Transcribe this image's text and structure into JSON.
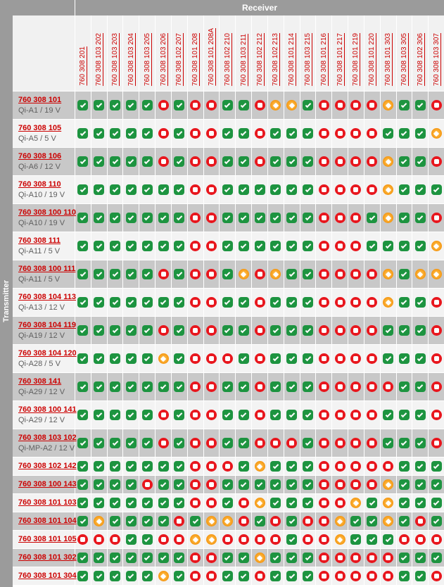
{
  "header": {
    "receiver_label": "Receiver",
    "transmitter_label": "Transmitter"
  },
  "legend": {
    "G": "compatible",
    "R": "not-compatible",
    "O": "restricted"
  },
  "colors": {
    "band_gray": "#9b9b9b",
    "row_dark": "#c8c8c8",
    "row_light": "#f3f3f3",
    "link_red": "#cc0000",
    "icon_green": "#1d9440",
    "icon_red": "#e8161d",
    "icon_orange": "#f28b00"
  },
  "columns": [
    "760 308 201",
    "760 308 103 202",
    "760 308 103 203",
    "760 308 103 204",
    "760 308 103 205",
    "760 308 103 206",
    "760 308 102 207",
    "760 308 101 208",
    "760 308 101 208A",
    "760 308 102 210",
    "760 308 103 211",
    "760 308 102 212",
    "760 308 102 213",
    "760 308 101 214",
    "760 308 103 215",
    "760 308 101 216",
    "760 308 101 217",
    "760 308 101 219",
    "760 308 101 220",
    "760 308 101 303",
    "760 308 103 305",
    "760 308 102 306",
    "760 308 103 307"
  ],
  "rows": [
    {
      "id": "760 308 101",
      "subtitle": "Qi-A1 / 19 V",
      "states": "GGGGGRGRRGGROOGRRRROGGR"
    },
    {
      "id": "760 308 105",
      "subtitle": "Qi-A5 / 5 V",
      "states": "GGGGGRGRRGGRGGGRRRRGGGO"
    },
    {
      "id": "760 308 106",
      "subtitle": "Qi-A6 / 12 V",
      "states": "GGGGGRGRRGGRGGGRRRROGGR"
    },
    {
      "id": "760 308 110",
      "subtitle": "Qi-A10 / 19 V",
      "states": "GGGGGGGRRGGGGGGRRRROGGG"
    },
    {
      "id": "760 308 100 110",
      "subtitle": "Qi-A10 / 19 V",
      "states": "GGGGGGGRRGGGGGGRRRGOGGR"
    },
    {
      "id": "760 308 111",
      "subtitle": "Qi-A11 / 5 V",
      "states": "GGGGGGGRRGGGGGGRRRGGGGO"
    },
    {
      "id": "760 308 100 111",
      "subtitle": "Qi-A11 / 5 V",
      "states": "GGGGGRGRRGOROGGRRRROGOO"
    },
    {
      "id": "760 308 104 113",
      "subtitle": "Qi-A13 / 12 V",
      "states": "GGGGGGGRRGGRGGGRRRROGGR"
    },
    {
      "id": "760 308 104 119",
      "subtitle": "Qi-A19 / 12 V",
      "states": "GGGGGRGRRGGRGGGRRRRGGGR"
    },
    {
      "id": "760 308 104 120",
      "subtitle": "Qi-A28 / 5 V",
      "states": "GGGGGOGRRRGRGGGRRRRGGGR"
    },
    {
      "id": "760 308 141",
      "subtitle": "Qi-A29 / 12 V",
      "states": "GGGGGGGRRGGRGGGRRRRRGGR"
    },
    {
      "id": "760 308 100 141",
      "subtitle": "Qi-A29 / 12 V",
      "states": "GGGGGRGRRGGRGGGRRRRGGGR"
    },
    {
      "id": "760 308 103 102",
      "subtitle": "Qi-MP-A2 / 12 V",
      "states": "GGGGGRGRRGGRRRGRRRRGGGR"
    },
    {
      "id": "760 308 102 142",
      "subtitle": "",
      "states": "GGGGGGGRRRGOGGGRRRRRGGG"
    },
    {
      "id": "760 308 100 143",
      "subtitle": "",
      "states": "GGGGRGGRRGGGGGGRRRROGGG"
    },
    {
      "id": "760 308 101 103",
      "subtitle": "",
      "states": "GGGGGGGRRGROGGGRROGOGGG"
    },
    {
      "id": "760 308 101 104",
      "subtitle": "",
      "states": "GOGGGGRGOORGRGRROGGOGRG"
    },
    {
      "id": "760 308 101 105",
      "subtitle": "",
      "states": "RRRGGRROORRRRGRROGGGRRR"
    },
    {
      "id": "760 308 101 302",
      "subtitle": "",
      "states": "GGGGGGGRRGGOGGGRRRRRGGG"
    },
    {
      "id": "760 308 101 304",
      "subtitle": "",
      "states": "GGGGGOGRRGGRGGGRRRRRGGR"
    }
  ]
}
